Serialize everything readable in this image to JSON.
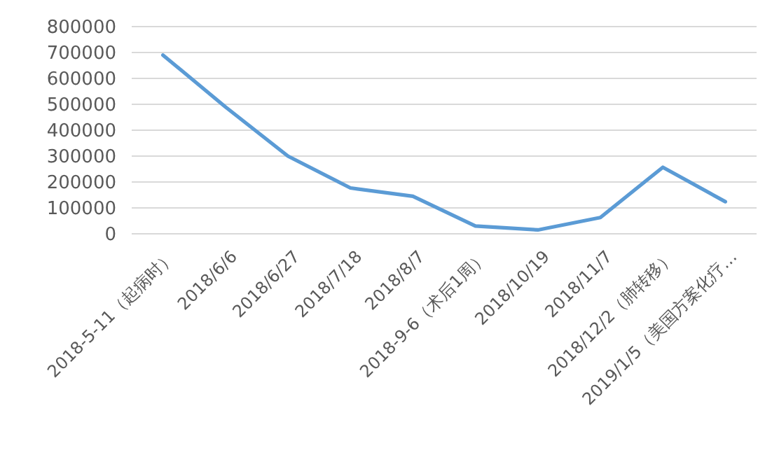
{
  "chart_data": {
    "type": "line",
    "categories": [
      "2018-5-11（起病时）",
      "2018/6/6",
      "2018/6/27",
      "2018/7/18",
      "2018/8/7",
      "2018-9-6（术后1周）",
      "2018/10/19",
      "2018/11/7",
      "2018/12/2（肺转移）",
      "2019/1/5（美国方案化疗…"
    ],
    "series": [
      {
        "color": "#5b9bd5",
        "values": [
          690000,
          490000,
          300000,
          177000,
          145000,
          30000,
          15000,
          63000,
          257000,
          124000
        ]
      }
    ],
    "ylim": [
      0,
      800000
    ],
    "yticks": [
      0,
      100000,
      200000,
      300000,
      400000,
      500000,
      600000,
      700000,
      800000
    ],
    "grid": "y"
  }
}
